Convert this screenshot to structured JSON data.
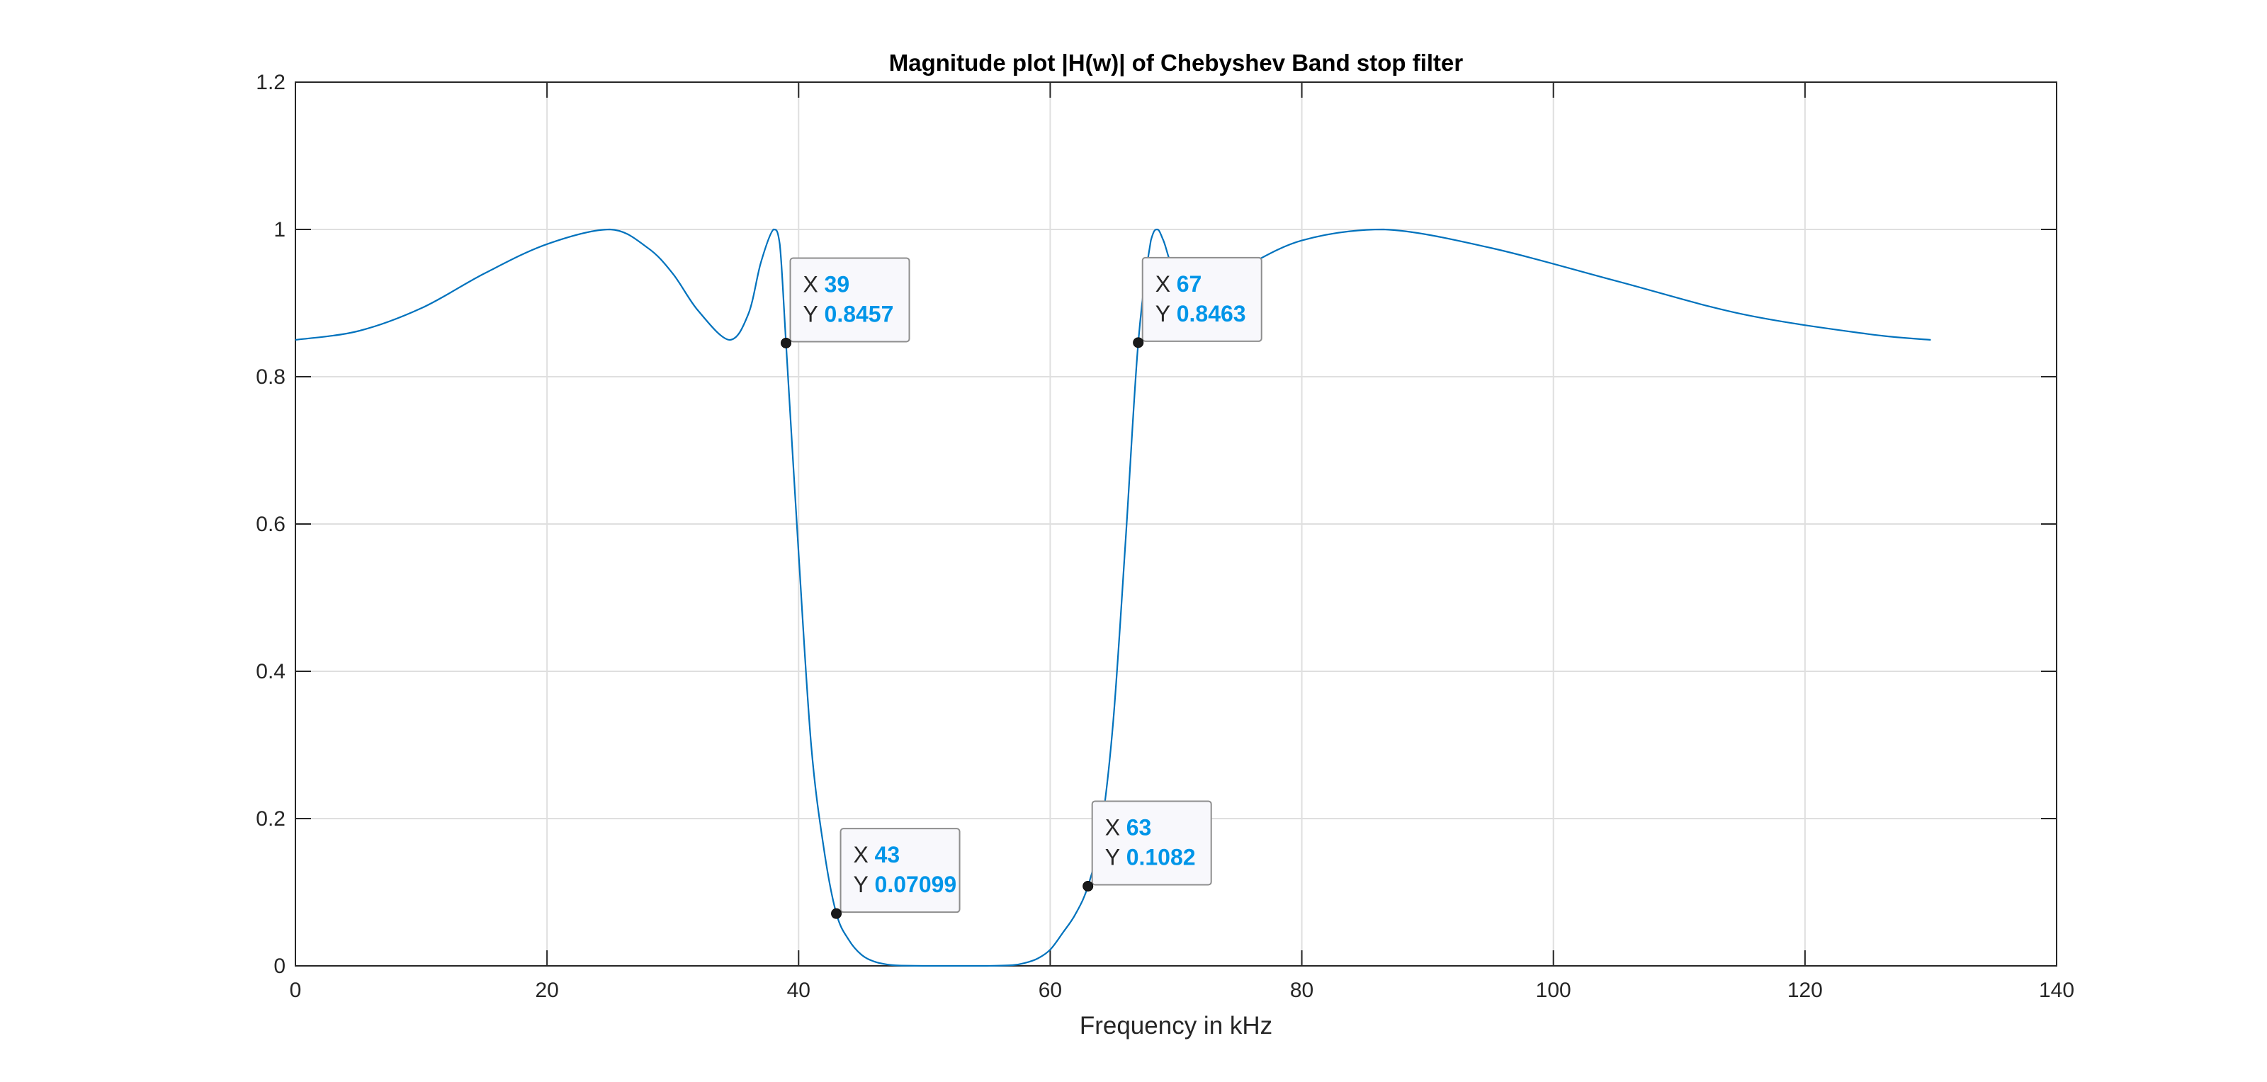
{
  "chart_data": {
    "type": "line",
    "title": "Magnitude plot |H(w)| of Chebyshev Band stop filter",
    "xlabel": "Frequency in kHz",
    "ylabel": "",
    "xlim": [
      0,
      140
    ],
    "ylim": [
      0,
      1.2
    ],
    "xticks": [
      0,
      20,
      40,
      60,
      80,
      100,
      120,
      140
    ],
    "yticks": [
      0,
      0.2,
      0.4,
      0.6,
      0.8,
      1,
      1.2
    ],
    "xtick_labels": [
      "0",
      "20",
      "40",
      "60",
      "80",
      "100",
      "120",
      "140"
    ],
    "ytick_labels": [
      "0",
      "0.2",
      "0.4",
      "0.6",
      "0.8",
      "1",
      "1.2"
    ],
    "grid": true,
    "series": [
      {
        "color": "#0072BD",
        "x": [
          0,
          5,
          10,
          15,
          20,
          25,
          28,
          30,
          32,
          34.5,
          36,
          37,
          38,
          38.5,
          39,
          40,
          41,
          42,
          43,
          44,
          45,
          46,
          47,
          48,
          50,
          52,
          55,
          57,
          58,
          59,
          60,
          61,
          62,
          63,
          64,
          65,
          66,
          67,
          68,
          68.5,
          69,
          70,
          72,
          75,
          80,
          86.5,
          95,
          105,
          115,
          125,
          130
        ],
        "y": [
          0.85,
          0.862,
          0.893,
          0.94,
          0.98,
          1.0,
          0.975,
          0.94,
          0.89,
          0.85,
          0.885,
          0.955,
          1.0,
          0.98,
          0.8457,
          0.56,
          0.3,
          0.16,
          0.07099,
          0.035,
          0.015,
          0.006,
          0.002,
          0.0005,
          0.0,
          0.0,
          0.0,
          0.001,
          0.004,
          0.01,
          0.022,
          0.045,
          0.07,
          0.1082,
          0.18,
          0.33,
          0.58,
          0.8463,
          0.985,
          1.0,
          0.985,
          0.94,
          0.92,
          0.945,
          0.985,
          1.0,
          0.975,
          0.93,
          0.885,
          0.858,
          0.85
        ]
      }
    ],
    "annotations": [
      {
        "x": 39,
        "y": 0.8457,
        "x_text": "39",
        "y_text": "0.8457"
      },
      {
        "x": 43,
        "y": 0.07099,
        "x_text": "43",
        "y_text": "0.07099"
      },
      {
        "x": 63,
        "y": 0.1082,
        "x_text": "63",
        "y_text": "0.1082"
      },
      {
        "x": 67,
        "y": 0.8463,
        "x_text": "67",
        "y_text": "0.8463"
      }
    ],
    "tip_x_key": "X",
    "tip_y_key": "Y",
    "value_color": "#0095E8"
  }
}
